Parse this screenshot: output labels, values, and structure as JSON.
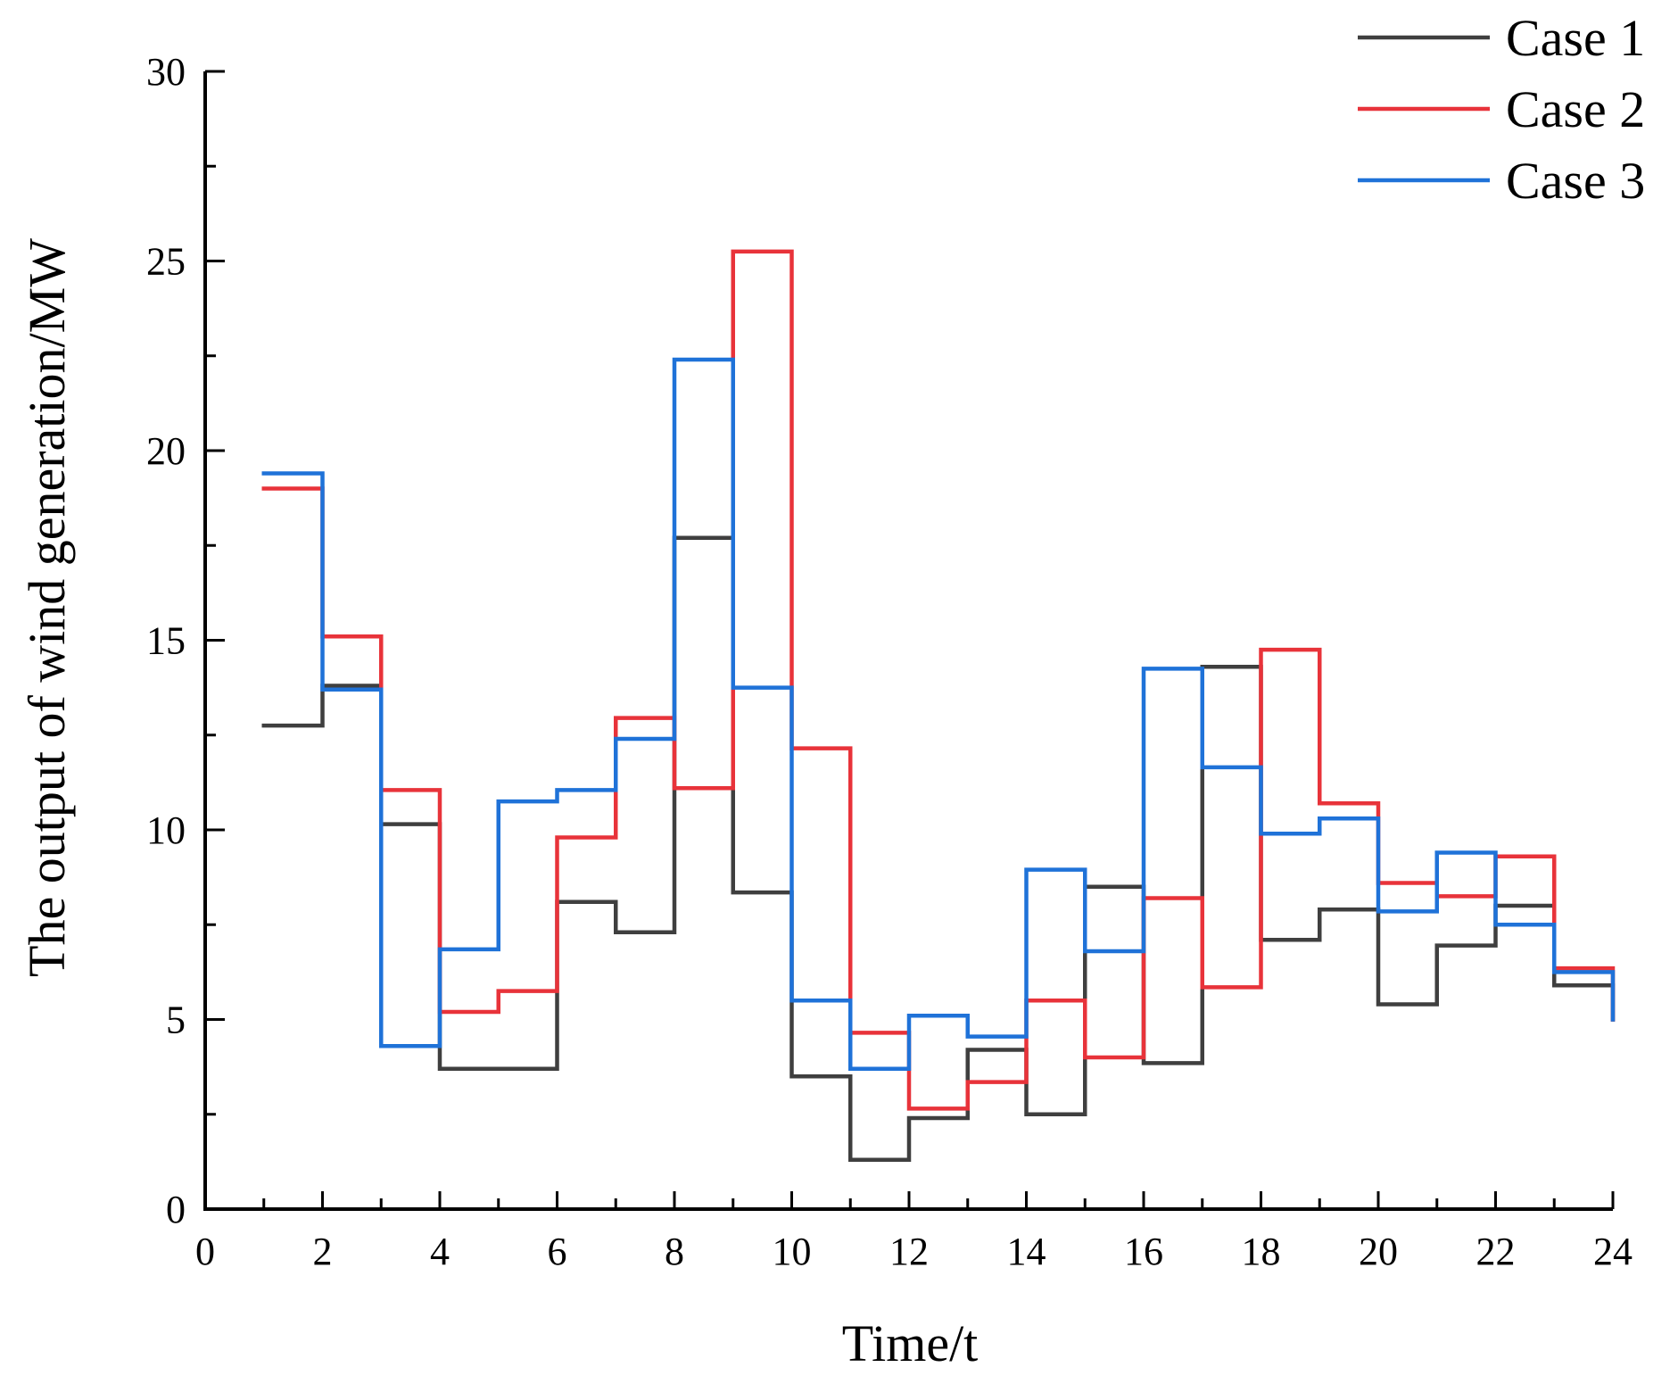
{
  "chart_data": {
    "type": "line",
    "step": "post",
    "xlabel": "Time/t",
    "ylabel": "The output of wind generation/MW",
    "xlim": [
      0,
      24
    ],
    "ylim": [
      0,
      30
    ],
    "x_ticks": [
      "0",
      "2",
      "4",
      "6",
      "8",
      "10",
      "12",
      "14",
      "16",
      "18",
      "20",
      "22",
      "24"
    ],
    "y_ticks": [
      "0",
      "5",
      "10",
      "15",
      "20",
      "25",
      "30"
    ],
    "legend_position": "top-right",
    "x": [
      1,
      2,
      3,
      4,
      5,
      6,
      7,
      8,
      9,
      10,
      11,
      12,
      13,
      14,
      15,
      16,
      17,
      18,
      19,
      20,
      21,
      22,
      23,
      24
    ],
    "series": [
      {
        "name": "Case 1",
        "color": "#3f3f3f",
        "values": [
          12.75,
          13.8,
          10.15,
          3.7,
          3.7,
          8.1,
          7.3,
          17.7,
          8.35,
          3.5,
          1.3,
          2.4,
          4.2,
          2.5,
          8.5,
          3.85,
          14.3,
          7.1,
          7.9,
          5.4,
          6.95,
          8.0,
          5.9,
          5.0
        ]
      },
      {
        "name": "Case 2",
        "color": "#e8333a",
        "values": [
          19.0,
          15.1,
          11.05,
          5.2,
          5.75,
          9.8,
          12.95,
          11.1,
          25.25,
          12.15,
          4.65,
          2.65,
          3.35,
          5.5,
          4.0,
          8.2,
          5.85,
          14.75,
          10.7,
          8.6,
          8.25,
          9.3,
          6.35,
          5.0
        ]
      },
      {
        "name": "Case 3",
        "color": "#1f72d8",
        "values": [
          19.4,
          13.7,
          4.3,
          6.85,
          10.75,
          11.05,
          12.4,
          22.4,
          13.75,
          5.5,
          3.7,
          5.1,
          4.55,
          8.95,
          6.8,
          14.25,
          11.65,
          9.9,
          10.3,
          7.85,
          9.4,
          7.5,
          6.25,
          5.0
        ]
      }
    ]
  }
}
